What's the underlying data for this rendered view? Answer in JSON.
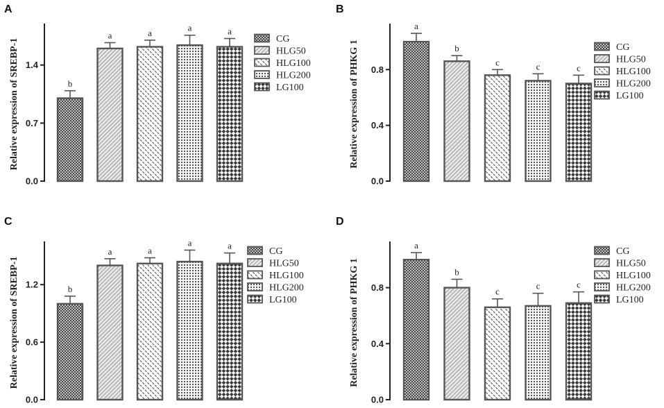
{
  "figure": {
    "series_names": [
      "CG",
      "HLG50",
      "HLG100",
      "HLG200",
      "LG100"
    ]
  },
  "chart_data": [
    {
      "type": "bar",
      "panel": "A",
      "ylabel": "Relative expression of SREBP-1",
      "ylim": [
        0,
        1.9
      ],
      "yticks": [
        0.0,
        0.7,
        1.4
      ],
      "ytick_labels": [
        "0.0",
        "0.7",
        "1.4"
      ],
      "categories": [
        "CG",
        "HLG50",
        "HLG100",
        "HLG200",
        "LG100"
      ],
      "values": [
        1.0,
        1.6,
        1.62,
        1.64,
        1.62
      ],
      "errors": [
        0.09,
        0.07,
        0.08,
        0.12,
        0.1
      ],
      "significance": [
        "b",
        "a",
        "a",
        "a",
        "a"
      ],
      "legend": [
        "CG",
        "HLG50",
        "HLG100",
        "HLG200",
        "LG100"
      ]
    },
    {
      "type": "bar",
      "panel": "B",
      "ylabel": "Relative expression of PHKG 1",
      "ylim": [
        0,
        1.13
      ],
      "yticks": [
        0.0,
        0.4,
        0.8
      ],
      "ytick_labels": [
        "0.0",
        "0.4",
        "0.8"
      ],
      "categories": [
        "CG",
        "HLG50",
        "HLG100",
        "HLG200",
        "LG100"
      ],
      "values": [
        1.0,
        0.86,
        0.76,
        0.72,
        0.7
      ],
      "errors": [
        0.06,
        0.04,
        0.04,
        0.05,
        0.06
      ],
      "significance": [
        "a",
        "b",
        "c",
        "c",
        "c"
      ],
      "legend": [
        "CG",
        "HLG50",
        "HLG100",
        "HLG200",
        "LG100"
      ]
    },
    {
      "type": "bar",
      "panel": "C",
      "ylabel": "Relative expression of SREBP-1",
      "ylim": [
        0,
        1.65
      ],
      "yticks": [
        0.0,
        0.6,
        1.2
      ],
      "ytick_labels": [
        "0.0",
        "0.6",
        "1.2"
      ],
      "categories": [
        "CG",
        "HLG50",
        "HLG100",
        "HLG200",
        "LG100"
      ],
      "values": [
        1.0,
        1.4,
        1.42,
        1.44,
        1.42
      ],
      "errors": [
        0.08,
        0.07,
        0.06,
        0.12,
        0.11
      ],
      "significance": [
        "b",
        "a",
        "a",
        "a",
        "a"
      ],
      "legend": [
        "CG",
        "HLG50",
        "HLG100",
        "HLG200",
        "LG100"
      ]
    },
    {
      "type": "bar",
      "panel": "D",
      "ylabel": "Relative expression of PHKG 1",
      "ylim": [
        0,
        1.13
      ],
      "yticks": [
        0.0,
        0.4,
        0.8
      ],
      "ytick_labels": [
        "0.0",
        "0.4",
        "0.8"
      ],
      "categories": [
        "CG",
        "HLG50",
        "HLG100",
        "HLG200",
        "LG100"
      ],
      "values": [
        1.0,
        0.8,
        0.66,
        0.67,
        0.69
      ],
      "errors": [
        0.05,
        0.06,
        0.06,
        0.09,
        0.08
      ],
      "significance": [
        "a",
        "b",
        "c",
        "c",
        "c"
      ],
      "legend": [
        "CG",
        "HLG50",
        "HLG100",
        "HLG200",
        "LG100"
      ]
    }
  ]
}
